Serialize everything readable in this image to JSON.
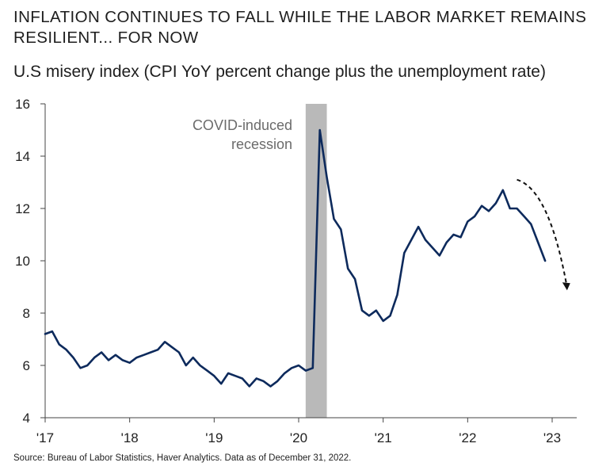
{
  "header": {
    "title": "INFLATION CONTINUES TO FALL WHILE THE LABOR MARKET REMAINS RESILIENT... FOR NOW",
    "subtitle": "U.S misery index (CPI YoY percent change plus the unemployment rate)"
  },
  "footer": {
    "source": "Source: Bureau of Labor Statistics, Haver Analytics. Data as of December 31, 2022."
  },
  "chart_data": {
    "type": "line",
    "title": "U.S misery index (CPI YoY percent change plus the unemployment rate)",
    "xlabel": "",
    "ylabel": "",
    "xlim": [
      2017,
      2023
    ],
    "ylim": [
      4,
      16
    ],
    "y_ticks": [
      4,
      6,
      8,
      10,
      12,
      14,
      16
    ],
    "x_ticks": [
      2017,
      2018,
      2019,
      2020,
      2021,
      2022,
      2023
    ],
    "x_tick_labels": [
      "'17",
      "'18",
      "'19",
      "'20",
      "'21",
      "'22",
      "'23"
    ],
    "colors": {
      "line": "#0d2a5c",
      "recession": "#b9b9b9",
      "axis": "#444444",
      "arrow": "#111111"
    },
    "recession": {
      "start": 2020.083,
      "end": 2020.333,
      "label_lines": [
        "COVID-induced",
        "recession"
      ]
    },
    "trend_arrow": {
      "from": [
        2022.583,
        13.1
      ],
      "to": [
        2023.167,
        8.9
      ],
      "style": "dashed"
    },
    "series": [
      {
        "name": "Misery index",
        "x": [
          2017.0,
          2017.083,
          2017.167,
          2017.25,
          2017.333,
          2017.417,
          2017.5,
          2017.583,
          2017.667,
          2017.75,
          2017.833,
          2017.917,
          2018.0,
          2018.083,
          2018.167,
          2018.25,
          2018.333,
          2018.417,
          2018.5,
          2018.583,
          2018.667,
          2018.75,
          2018.833,
          2018.917,
          2019.0,
          2019.083,
          2019.167,
          2019.25,
          2019.333,
          2019.417,
          2019.5,
          2019.583,
          2019.667,
          2019.75,
          2019.833,
          2019.917,
          2020.0,
          2020.083,
          2020.167,
          2020.25,
          2020.333,
          2020.417,
          2020.5,
          2020.583,
          2020.667,
          2020.75,
          2020.833,
          2020.917,
          2021.0,
          2021.083,
          2021.167,
          2021.25,
          2021.333,
          2021.417,
          2021.5,
          2021.583,
          2021.667,
          2021.75,
          2021.833,
          2021.917,
          2022.0,
          2022.083,
          2022.167,
          2022.25,
          2022.333,
          2022.417,
          2022.5,
          2022.583,
          2022.667,
          2022.75,
          2022.833,
          2022.917,
          2023.0
        ],
        "values": [
          7.2,
          7.3,
          6.8,
          6.6,
          6.3,
          5.9,
          6.0,
          6.3,
          6.5,
          6.2,
          6.4,
          6.2,
          6.1,
          6.3,
          6.4,
          6.5,
          6.6,
          6.9,
          6.7,
          6.5,
          6.0,
          6.3,
          6.0,
          5.8,
          5.6,
          5.3,
          5.7,
          5.6,
          5.5,
          5.2,
          5.5,
          5.4,
          5.2,
          5.4,
          5.7,
          5.9,
          6.0,
          5.8,
          5.9,
          15.0,
          13.2,
          11.6,
          11.2,
          9.7,
          9.3,
          8.1,
          7.9,
          8.1,
          7.7,
          7.9,
          8.7,
          10.3,
          10.8,
          11.3,
          10.8,
          10.5,
          10.2,
          10.7,
          11.0,
          10.9,
          11.5,
          11.7,
          12.1,
          11.9,
          12.2,
          12.7,
          12.0,
          12.0,
          11.7,
          11.4,
          10.7,
          10.0,
          null
        ]
      }
    ]
  }
}
